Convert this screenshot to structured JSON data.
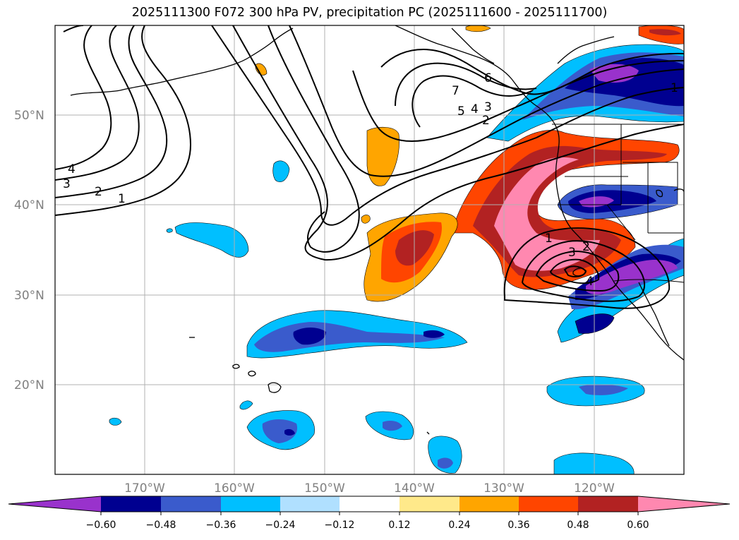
{
  "title": "2025111300 F072 300 hPa PV, precipitation PC (2025111600 - 2025111700)",
  "lat_labels": [
    "50°N",
    "40°N",
    "30°N",
    "20°N"
  ],
  "lon_labels": [
    "170°W",
    "160°W",
    "150°W",
    "140°W",
    "130°W",
    "120°W"
  ],
  "pv_contour_labels": [
    "4",
    "3",
    "2",
    "1",
    "7",
    "5",
    "4",
    "3",
    "2",
    "6",
    "1",
    "1",
    "3",
    "2",
    "4"
  ],
  "colorbar": {
    "ticks": [
      "−0.60",
      "−0.48",
      "−0.36",
      "−0.24",
      "−0.12",
      "0.12",
      "0.24",
      "0.36",
      "0.48",
      "0.60"
    ],
    "colors": [
      "#9932cc",
      "#000090",
      "#3a5bcc",
      "#00bfff",
      "#b0e0ff",
      "#ffffff",
      "#ffe98a",
      "#ffa500",
      "#ff4500",
      "#b22222",
      "#ff88b0"
    ]
  },
  "chart_data": {
    "type": "map",
    "title": "2025111300 F072 300 hPa PV, precipitation PC (2025111600 - 2025111700)",
    "projection": "PlateCarree",
    "lon_range": [
      -180,
      -110
    ],
    "lat_range": [
      10,
      60
    ],
    "filled_field": "precipitation PC",
    "contour_field": "300 hPa PV",
    "contour_levels": [
      1,
      2,
      3,
      4,
      5,
      6,
      7
    ],
    "colorbar_levels": [
      -0.6,
      -0.48,
      -0.36,
      -0.24,
      -0.12,
      0.12,
      0.24,
      0.36,
      0.48,
      0.6
    ],
    "colorbar_extend": "both"
  }
}
